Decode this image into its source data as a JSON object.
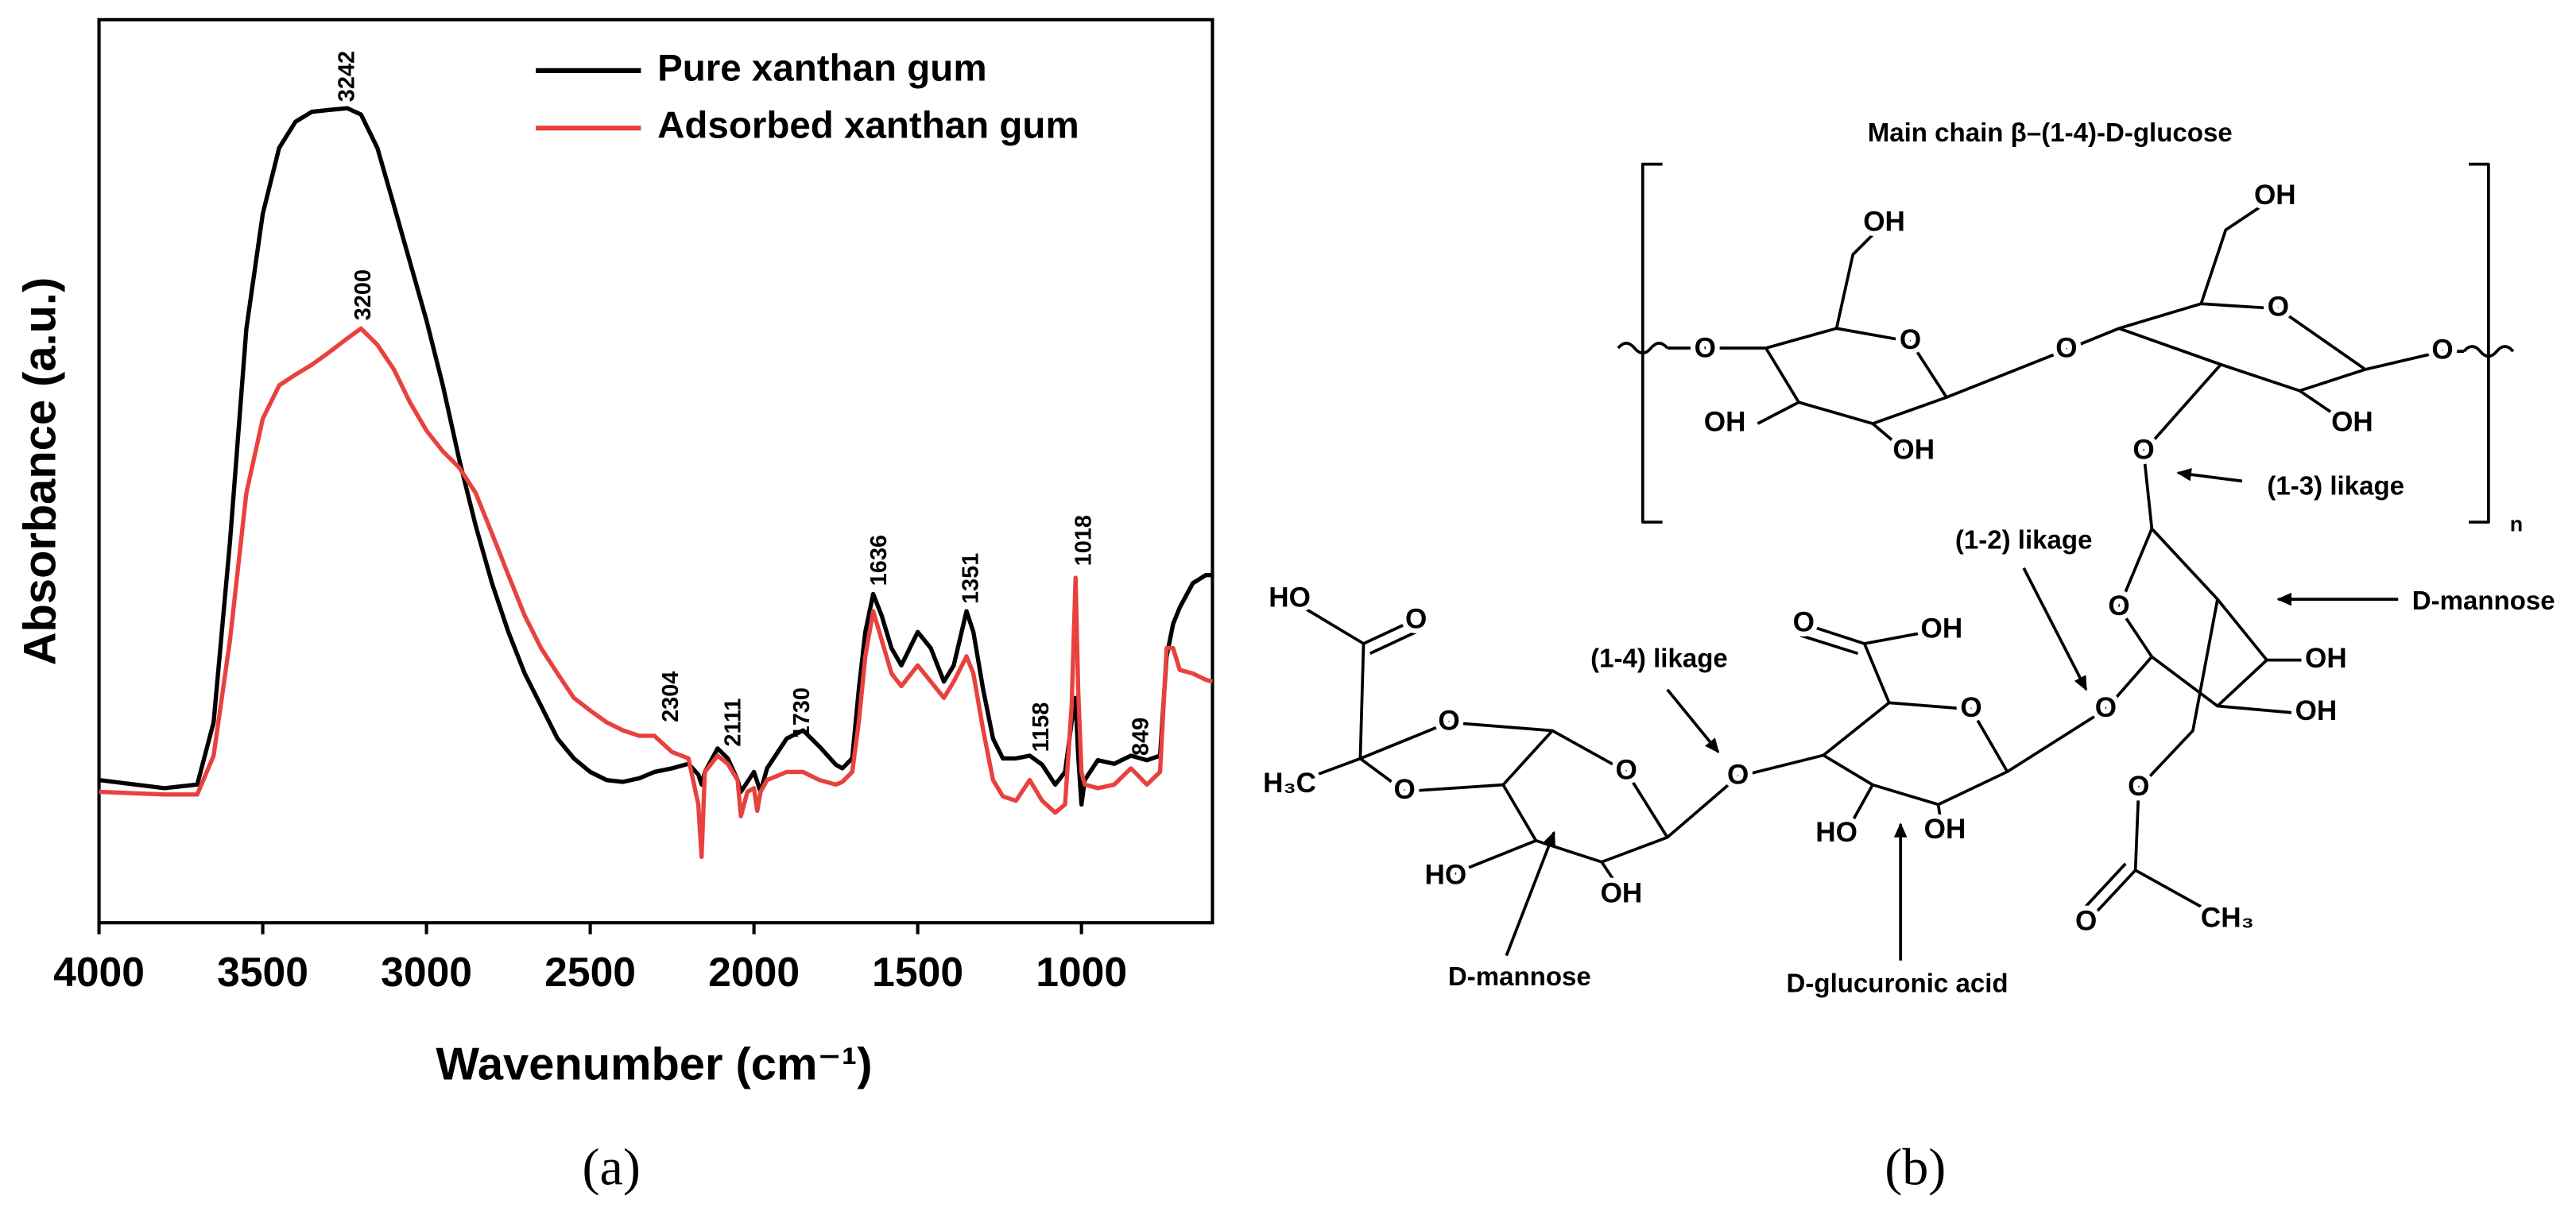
{
  "chart_data": {
    "type": "line",
    "x_label": "Wavenumber (cm⁻¹)",
    "y_label": "Absorbance (a.u.)",
    "xlim": [
      4000,
      600
    ],
    "ylim": [
      0,
      100
    ],
    "xticks": [
      4000,
      3500,
      3000,
      2500,
      2000,
      1500,
      1000
    ],
    "legend": "upper right",
    "x": [
      4000,
      3800,
      3700,
      3650,
      3600,
      3550,
      3500,
      3450,
      3400,
      3350,
      3300,
      3242,
      3200,
      3150,
      3100,
      3050,
      3000,
      2950,
      2900,
      2850,
      2800,
      2750,
      2700,
      2650,
      2600,
      2550,
      2500,
      2450,
      2400,
      2350,
      2304,
      2250,
      2200,
      2170,
      2160,
      2150,
      2111,
      2080,
      2050,
      2040,
      2020,
      2000,
      1990,
      1980,
      1960,
      1900,
      1850,
      1800,
      1750,
      1730,
      1700,
      1680,
      1660,
      1636,
      1610,
      1580,
      1550,
      1500,
      1460,
      1420,
      1390,
      1351,
      1330,
      1300,
      1270,
      1240,
      1200,
      1158,
      1120,
      1080,
      1050,
      1030,
      1018,
      1010,
      1000,
      990,
      950,
      900,
      849,
      800,
      760,
      740,
      720,
      700,
      660,
      620,
      600
    ],
    "series": [
      {
        "name": "Pure xanthan gum",
        "color": "#000000",
        "values": [
          15.8,
          14.9,
          15.3,
          22.2,
          42.2,
          65.8,
          78.5,
          85.8,
          88.7,
          89.8,
          90.0,
          90.2,
          89.5,
          85.8,
          79.5,
          73.1,
          66.7,
          59.5,
          51.3,
          44.0,
          37.6,
          32.2,
          27.6,
          24.0,
          20.4,
          18.2,
          16.7,
          15.8,
          15.6,
          16.0,
          16.7,
          17.1,
          17.6,
          16.4,
          15.3,
          16.7,
          19.3,
          18.2,
          15.8,
          14.5,
          15.6,
          16.7,
          15.6,
          14.5,
          17.1,
          20.4,
          21.3,
          19.5,
          17.5,
          17.1,
          18.2,
          25.8,
          32.2,
          36.4,
          34.0,
          30.4,
          28.5,
          32.2,
          30.4,
          26.7,
          28.5,
          34.5,
          32.2,
          25.8,
          20.4,
          18.2,
          18.2,
          18.5,
          17.5,
          15.3,
          16.7,
          22.2,
          24.9,
          18.5,
          13.1,
          15.8,
          18.0,
          17.6,
          18.5,
          18.0,
          18.5,
          29.5,
          33.1,
          34.9,
          37.6,
          38.5,
          38.5
        ]
      },
      {
        "name": "Adsorbed xanthan gum",
        "color": "#e8413e",
        "values": [
          14.5,
          14.2,
          14.2,
          18.5,
          31.3,
          47.6,
          55.8,
          59.5,
          60.7,
          61.8,
          63.1,
          64.7,
          65.8,
          64.0,
          61.3,
          57.6,
          54.5,
          52.2,
          50.4,
          47.6,
          43.1,
          38.5,
          34.0,
          30.4,
          27.6,
          24.9,
          23.5,
          22.2,
          21.3,
          20.7,
          20.7,
          18.9,
          18.2,
          13.1,
          7.3,
          16.7,
          18.5,
          17.6,
          15.8,
          11.8,
          14.5,
          14.9,
          12.4,
          14.5,
          15.8,
          16.7,
          16.7,
          15.8,
          15.3,
          15.6,
          16.7,
          22.2,
          29.5,
          34.5,
          31.3,
          27.6,
          26.2,
          28.5,
          26.7,
          24.9,
          26.7,
          29.5,
          27.6,
          21.3,
          15.8,
          14.0,
          13.5,
          15.8,
          13.5,
          12.2,
          13.1,
          24.0,
          38.2,
          25.8,
          16.7,
          15.3,
          14.9,
          15.3,
          17.1,
          15.3,
          16.7,
          30.4,
          30.4,
          28.0,
          27.6,
          26.9,
          26.7
        ]
      }
    ],
    "annotations": [
      {
        "text": "3242",
        "x": 3240,
        "y": 90.9
      },
      {
        "text": "3200",
        "x": 3190,
        "y": 66.7
      },
      {
        "text": "2304",
        "x": 2250,
        "y": 22.2
      },
      {
        "text": "2111",
        "x": 2060,
        "y": 19.5
      },
      {
        "text": "1730",
        "x": 1850,
        "y": 20.4
      },
      {
        "text": "1636",
        "x": 1615,
        "y": 37.3
      },
      {
        "text": "1351",
        "x": 1335,
        "y": 35.3
      },
      {
        "text": "1158",
        "x": 1120,
        "y": 18.9
      },
      {
        "text": "1018",
        "x": 990,
        "y": 39.5
      },
      {
        "text": "849",
        "x": 815,
        "y": 18.5
      }
    ]
  },
  "panel_labels": [
    "(a)",
    "(b)"
  ],
  "diagram": {
    "title": "Main chain β–(1-4)-D-glucose",
    "labels": [
      "OH",
      "OH",
      "O",
      "O",
      "O",
      "O",
      "O",
      "OH",
      "OH",
      "OH",
      "O",
      "O",
      "OH",
      "OH",
      "O",
      "O",
      "O",
      "CH₃",
      "O",
      "OH",
      "O",
      "HO",
      "OH",
      "O",
      "HO",
      "O",
      "O",
      "O",
      "H₃C",
      "O",
      "HO",
      "OH",
      "n"
    ],
    "notes": [
      "(1-3) likage",
      "(1-2) likage",
      "D-mannose",
      "(1-4) likage",
      "D-mannose",
      "D-glucuronic acid"
    ]
  }
}
